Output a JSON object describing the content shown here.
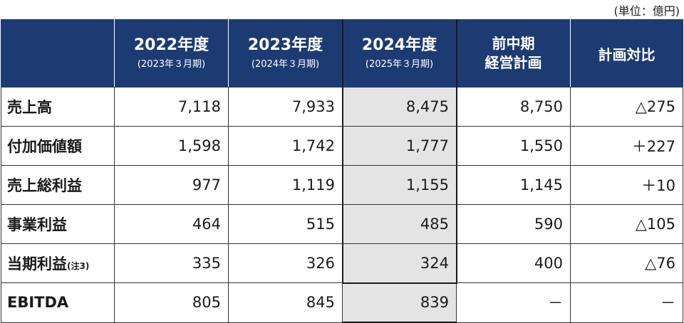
{
  "unit_note": "(単位：億円)",
  "header": {
    "col1_year": "2022年度",
    "col1_sub": "(2023年３月期)",
    "col2_year": "2023年度",
    "col2_sub": "(2024年３月期)",
    "col3_year": "2024年度",
    "col3_sub": "(2025年３月期)",
    "col4_line1": "前中期",
    "col4_line2": "経営計画",
    "col5": "計画対比"
  },
  "rows": [
    {
      "label": "売上高",
      "note": "",
      "v1": "7,118",
      "v2": "7,933",
      "v3": "8,475",
      "v4": "8,750",
      "v5": "△275"
    },
    {
      "label": "付加価値額",
      "note": "",
      "v1": "1,598",
      "v2": "1,742",
      "v3": "1,777",
      "v4": "1,550",
      "v5": "＋227"
    },
    {
      "label": "売上総利益",
      "note": "",
      "v1": "977",
      "v2": "1,119",
      "v3": "1,155",
      "v4": "1,145",
      "v5": "＋10"
    },
    {
      "label": "事業利益",
      "note": "",
      "v1": "464",
      "v2": "515",
      "v3": "485",
      "v4": "590",
      "v5": "△105"
    },
    {
      "label": "当期利益",
      "note": "(注3)",
      "v1": "335",
      "v2": "326",
      "v3": "324",
      "v4": "400",
      "v5": "△76"
    },
    {
      "label": "EBITDA",
      "note": "",
      "v1": "805",
      "v2": "845",
      "v3": "839",
      "v4": "－",
      "v5": "－"
    }
  ],
  "colors": {
    "header_bg": "#1d3b73",
    "highlight_bg": "#e4e4e4"
  }
}
